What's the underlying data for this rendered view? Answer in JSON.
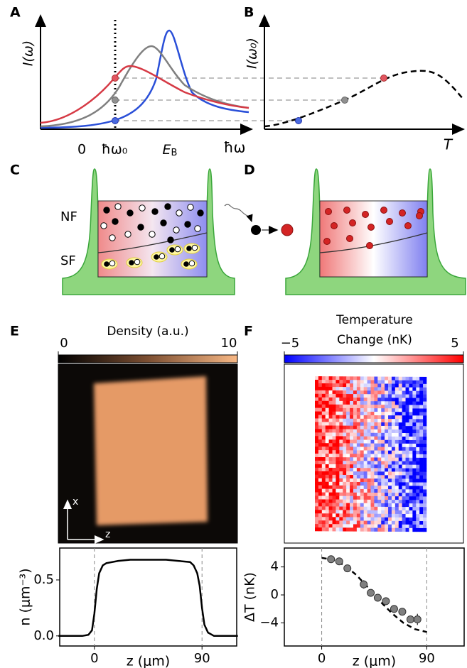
{
  "panel_labels": [
    "A",
    "B",
    "C",
    "D",
    "E",
    "F"
  ],
  "panel_a": {
    "ylabel": "I(ω)",
    "xlabel": "ħω",
    "tick_zero": "0",
    "tick_omega0": "ħω₀",
    "tick_eb": {
      "main": "E",
      "sub": "B"
    }
  },
  "panel_b": {
    "ylabel": "I(ω₀)",
    "xlabel": "T"
  },
  "panel_c": {
    "upper": "NF",
    "lower": "SF"
  },
  "panel_e": {
    "colorbar_title": "Density (a.u.)",
    "clim": [
      0,
      10
    ],
    "cticks": [
      0,
      10
    ],
    "axis_x": "x",
    "axis_z": "z"
  },
  "panel_f": {
    "colorbar_title": [
      "Temperature",
      "Change (nK)"
    ],
    "clim": [
      -5,
      5
    ],
    "cticks": [
      {
        "value": -5,
        "label": "−5"
      },
      5
    ]
  },
  "chart_data": [
    {
      "type": "line",
      "xlabel": "z (μm)",
      "ylabel": "n (μm⁻³)",
      "color": "#000000",
      "x": [
        -30,
        -20,
        -10,
        -5,
        -2,
        0,
        2,
        4,
        7,
        10,
        20,
        30,
        40,
        50,
        60,
        70,
        80,
        83,
        86,
        88,
        90,
        92,
        95,
        100,
        110,
        120
      ],
      "values": [
        0.0,
        0.0,
        0.0,
        0.01,
        0.05,
        0.2,
        0.42,
        0.56,
        0.63,
        0.65,
        0.67,
        0.68,
        0.68,
        0.68,
        0.68,
        0.67,
        0.66,
        0.63,
        0.56,
        0.45,
        0.25,
        0.1,
        0.03,
        0.0,
        0.0,
        0.0
      ],
      "xlim": [
        -29,
        119
      ],
      "ylim": [
        -0.09,
        0.785
      ],
      "xticks": [
        0,
        90
      ],
      "yticks": [
        {
          "value": 0,
          "label": "0.0"
        },
        0.5
      ],
      "guides": true
    },
    {
      "type": "scatter",
      "xlabel": "z (μm)",
      "ylabel": "ΔT (nK)",
      "color": "#808080",
      "x": [
        8,
        15,
        22,
        36,
        42,
        48,
        55,
        62,
        69,
        76,
        82
      ],
      "values": [
        5.1,
        4.8,
        3.8,
        1.5,
        0.3,
        -0.4,
        -0.9,
        -2.0,
        -2.4,
        -3.5,
        -3.5
      ],
      "errors": [
        0.4,
        0.5,
        0.5,
        0.6,
        0.5,
        0.5,
        0.5,
        0.5,
        0.5,
        0.5,
        0.8
      ],
      "fit": {
        "x": [
          0,
          10,
          20,
          30,
          40,
          50,
          60,
          70,
          80,
          90
        ],
        "values": [
          5.3,
          5.0,
          4.2,
          2.8,
          1.0,
          -0.9,
          -2.6,
          -4.0,
          -4.9,
          -5.3
        ]
      },
      "xlim": [
        -32,
        122
      ],
      "ylim": [
        -7.3,
        6.7
      ],
      "xticks": [
        0,
        90
      ],
      "yticks": [
        4,
        0,
        {
          "value": -4,
          "label": "−4"
        }
      ],
      "guides": true
    }
  ]
}
